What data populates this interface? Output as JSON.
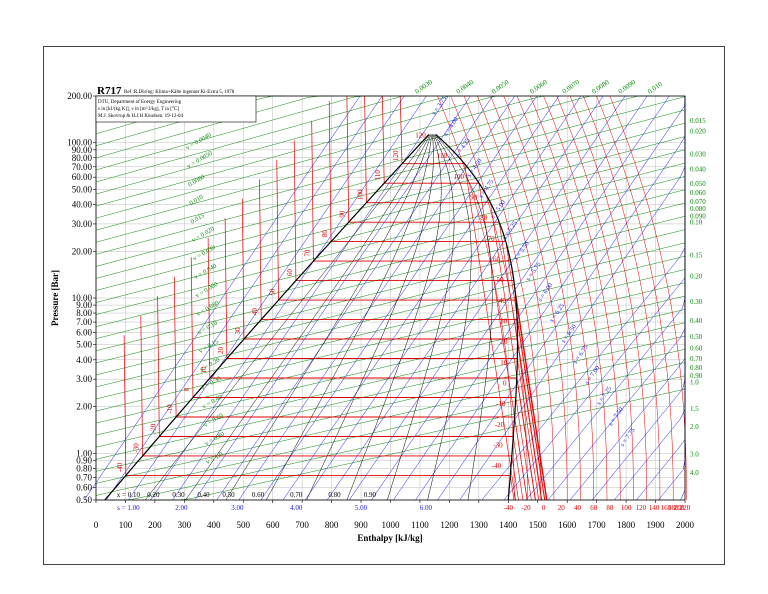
{
  "chart_data": {
    "type": "line",
    "refrigerant": "R717",
    "reference": "Ref :R.Döring: Klima+Kälte ingeniør Ki-Extra 5, 1978",
    "info_lines": [
      "DTU, Department of Energy Engineering",
      "s in [kJ/(kg K)], v in [m^3/kg], T in [°C]",
      "M.J. Skovrup & H.J.H Knudsen. 19-12-04"
    ],
    "xlabel": "Enthalpy [kJ/kg]",
    "ylabel": "Pressure [Bar]",
    "xlim": [
      0,
      2000
    ],
    "ylim": [
      0.5,
      200
    ],
    "y_scale": "log",
    "x_ticks": [
      0,
      100,
      200,
      300,
      400,
      500,
      600,
      700,
      800,
      900,
      1000,
      1100,
      1200,
      1300,
      1400,
      1500,
      1600,
      1700,
      1800,
      1900,
      2000
    ],
    "y_ticks": [
      {
        "v": 200,
        "label": "200.00"
      },
      {
        "v": 100,
        "label": "100.00"
      },
      {
        "v": 90,
        "label": "90.00"
      },
      {
        "v": 80,
        "label": "80.00"
      },
      {
        "v": 70,
        "label": "70.00"
      },
      {
        "v": 60,
        "label": "60.00"
      },
      {
        "v": 50,
        "label": "50.00"
      },
      {
        "v": 40,
        "label": "40.00"
      },
      {
        "v": 30,
        "label": "30.00"
      },
      {
        "v": 20,
        "label": "20.00"
      },
      {
        "v": 10,
        "label": "10.00"
      },
      {
        "v": 9,
        "label": "9.00"
      },
      {
        "v": 8,
        "label": "8.00"
      },
      {
        "v": 7,
        "label": "7.00"
      },
      {
        "v": 6,
        "label": "6.00"
      },
      {
        "v": 5,
        "label": "5.00"
      },
      {
        "v": 4,
        "label": "4.00"
      },
      {
        "v": 3,
        "label": "3.00"
      },
      {
        "v": 2,
        "label": "2.00"
      },
      {
        "v": 1,
        "label": "1.00"
      },
      {
        "v": 0.9,
        "label": "0.90"
      },
      {
        "v": 0.8,
        "label": "0.80"
      },
      {
        "v": 0.7,
        "label": "0.70"
      },
      {
        "v": 0.6,
        "label": "0.60"
      },
      {
        "v": 0.5,
        "label": "0.50"
      }
    ],
    "quality_labels": [
      "x = 0.10",
      "0.20",
      "0.30",
      "0.40",
      "0.50",
      "0.60",
      "0.70",
      "0.80",
      "0.90"
    ],
    "quality_positions_h": [
      110,
      195,
      280,
      365,
      450,
      550,
      680,
      810,
      930
    ],
    "entropy_labels": [
      "s = 1.00",
      "2.00",
      "3.00",
      "4.00",
      "5.00",
      "6.00"
    ],
    "entropy_positions_h": [
      110,
      290,
      480,
      680,
      900,
      1120
    ],
    "bottom_temp_labels": [
      "-40",
      "-20",
      "0",
      "20",
      "40",
      "60",
      "80",
      "100",
      "120",
      "140",
      "160",
      "180",
      "200",
      "220"
    ],
    "bottom_temp_positions_h": [
      1400,
      1460,
      1520,
      1580,
      1635,
      1690,
      1745,
      1800,
      1850,
      1895,
      1935,
      1960,
      1980,
      2000
    ],
    "right_volume_labels": [
      "0.015",
      "0.020",
      "0.030",
      "0.040",
      "0.050",
      "0.060",
      "0.070",
      "0.080",
      "0.090",
      "0.10",
      "0.15",
      "0.20",
      "0.30",
      "0.40",
      "0.50",
      "0.60",
      "0.70",
      "0.80",
      "0.90",
      "1.0",
      "1.5",
      "2.0",
      "3.0",
      "4.0"
    ],
    "right_volume_pressures": [
      140,
      120,
      85,
      68,
      55,
      48,
      42,
      38,
      34,
      31,
      19,
      14,
      9.6,
      7.2,
      5.7,
      4.8,
      4.1,
      3.6,
      3.2,
      2.9,
      1.95,
      1.5,
      1.0,
      0.76
    ],
    "top_volume_labels": [
      "0.0030",
      "0.0040",
      "0.0050",
      "0.0060",
      "0.0070",
      "0.0080",
      "0.0090",
      "0.010"
    ],
    "top_volume_positions_h": [
      1090,
      1230,
      1350,
      1480,
      1590,
      1690,
      1780,
      1880
    ],
    "liquid_temp_labels": [
      "-40",
      "-30",
      "-20",
      "-10",
      "0",
      "10",
      "20",
      "30",
      "40",
      "50",
      "60",
      "70",
      "80",
      "90",
      "100",
      "110",
      "120"
    ],
    "vapor_temp_labels": [
      "120",
      "110",
      "100",
      "90",
      "80",
      "70",
      "60",
      "50",
      "40",
      "30",
      "20",
      "10",
      "0",
      "-10",
      "-20",
      "-30",
      "-40"
    ],
    "isochore_labels_inside": [
      "v = 0.0040",
      "v = 0.0050",
      "0.0080",
      "0.010",
      "0.015",
      "v = 0.020",
      "v = 0.030",
      "v = 0.040",
      "v = 0.060",
      "v = 0.080",
      "v = 0.10",
      "v = 0.15",
      "v = 0.20",
      "v = 0.30",
      "v = 0.40",
      "v = 0.60",
      "v = 0.80",
      "v = 1.0"
    ],
    "entropy_labels_inside": [
      "s = 3.75",
      "s = 4.00",
      "s = 4.25",
      "s = 4.50",
      "s = 4.75",
      "s = 5.00",
      "s = 5.25",
      "s = 5.50",
      "s = 5.75",
      "s = 6.00",
      "s = 6.25",
      "s = 6.50",
      "s = 6.75",
      "s = 7.00",
      "s = 7.25",
      "s = 7.50",
      "s = 7.75"
    ],
    "colors": {
      "isotherm": "#e00000",
      "isochore": "#0a8a0a",
      "isentrope": "#1a1ae6",
      "quality": "#000000",
      "saturation": "#000000",
      "grid": "#bdbdbd"
    },
    "grid": true
  }
}
